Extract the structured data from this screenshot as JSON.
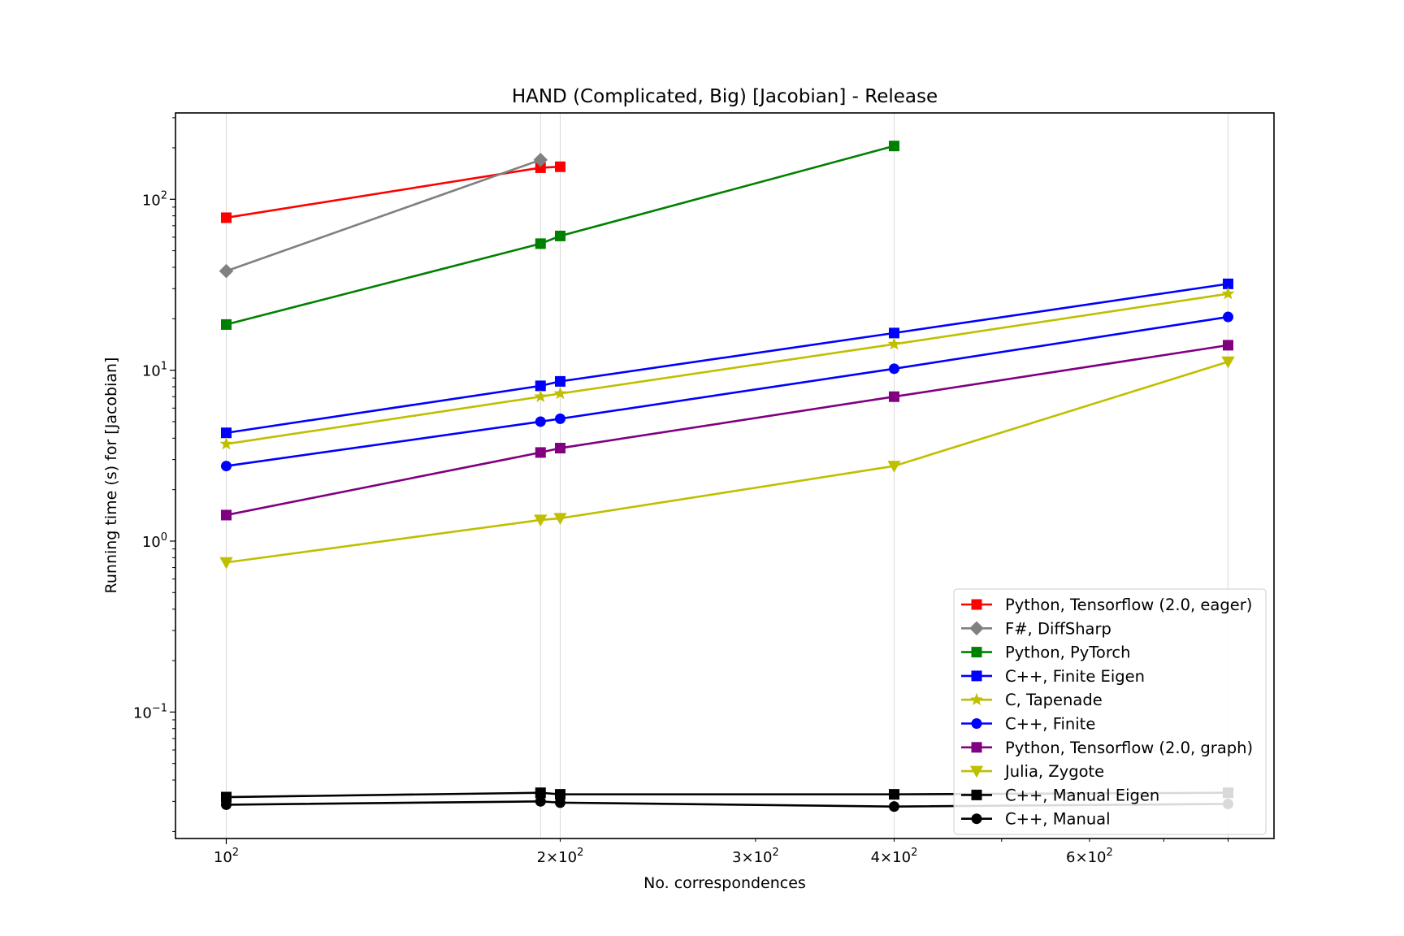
{
  "chart_data": {
    "type": "line",
    "title": "HAND (Complicated, Big) [Jacobian] - Release",
    "xlabel": "No. correspondences",
    "ylabel": "Running time (s) for [Jacobian]",
    "xscale": "log",
    "yscale": "log",
    "xlim": [
      90,
      880
    ],
    "ylim": [
      0.0182,
      320
    ],
    "grid": "vertical lines at data x values",
    "legend_position": "lower right",
    "x_ticks": [
      {
        "value": 100,
        "base": "10",
        "exp": "2",
        "mult": ""
      },
      {
        "value": 200,
        "base": "10",
        "exp": "2",
        "mult": "2×"
      },
      {
        "value": 300,
        "base": "10",
        "exp": "2",
        "mult": "3×"
      },
      {
        "value": 400,
        "base": "10",
        "exp": "2",
        "mult": "4×"
      },
      {
        "value": 600,
        "base": "10",
        "exp": "2",
        "mult": "6×"
      }
    ],
    "y_ticks": [
      {
        "value": 0.1,
        "base": "10",
        "exp": "−1"
      },
      {
        "value": 1,
        "base": "10",
        "exp": "0"
      },
      {
        "value": 10,
        "base": "10",
        "exp": "1"
      },
      {
        "value": 100,
        "base": "10",
        "exp": "2"
      }
    ],
    "grid_x": [
      100,
      192,
      200,
      400,
      800
    ],
    "series": [
      {
        "name": "Python, Tensorflow (2.0, eager)",
        "color": "#ff0000",
        "marker": "square",
        "x": [
          100,
          192,
          200
        ],
        "y": [
          78,
          153,
          155
        ]
      },
      {
        "name": "F#, DiffSharp",
        "color": "#808080",
        "marker": "diamond",
        "x": [
          100,
          192
        ],
        "y": [
          38,
          170
        ]
      },
      {
        "name": "Python, PyTorch",
        "color": "#008000",
        "marker": "square",
        "x": [
          100,
          192,
          200,
          400
        ],
        "y": [
          18.5,
          55,
          61,
          205
        ]
      },
      {
        "name": "C++, Finite Eigen",
        "color": "#0000ff",
        "marker": "square",
        "x": [
          100,
          192,
          200,
          400,
          800
        ],
        "y": [
          4.3,
          8.1,
          8.6,
          16.5,
          32
        ]
      },
      {
        "name": "C, Tapenade",
        "color": "#bfbf00",
        "marker": "star",
        "x": [
          100,
          192,
          200,
          400,
          800
        ],
        "y": [
          3.7,
          7.0,
          7.3,
          14.2,
          28
        ]
      },
      {
        "name": "C++, Finite",
        "color": "#0000ff",
        "marker": "circle",
        "x": [
          100,
          192,
          200,
          400,
          800
        ],
        "y": [
          2.75,
          5.0,
          5.2,
          10.2,
          20.5
        ]
      },
      {
        "name": "Python, Tensorflow (2.0, graph)",
        "color": "#800080",
        "marker": "square",
        "x": [
          100,
          192,
          200,
          400,
          800
        ],
        "y": [
          1.42,
          3.3,
          3.5,
          7.0,
          14.0
        ]
      },
      {
        "name": "Julia, Zygote",
        "color": "#bfbf00",
        "marker": "triangle_down",
        "x": [
          100,
          192,
          200,
          400,
          800
        ],
        "y": [
          0.75,
          1.33,
          1.36,
          2.75,
          11.2
        ]
      },
      {
        "name": "C++, Manual Eigen",
        "color": "#000000",
        "marker": "square",
        "x": [
          100,
          192,
          200,
          400,
          800
        ],
        "y": [
          0.0318,
          0.0337,
          0.033,
          0.033,
          0.0337
        ]
      },
      {
        "name": "C++, Manual",
        "color": "#000000",
        "marker": "circle",
        "x": [
          100,
          192,
          200,
          400,
          800
        ],
        "y": [
          0.0287,
          0.03,
          0.0295,
          0.028,
          0.029
        ]
      }
    ]
  }
}
